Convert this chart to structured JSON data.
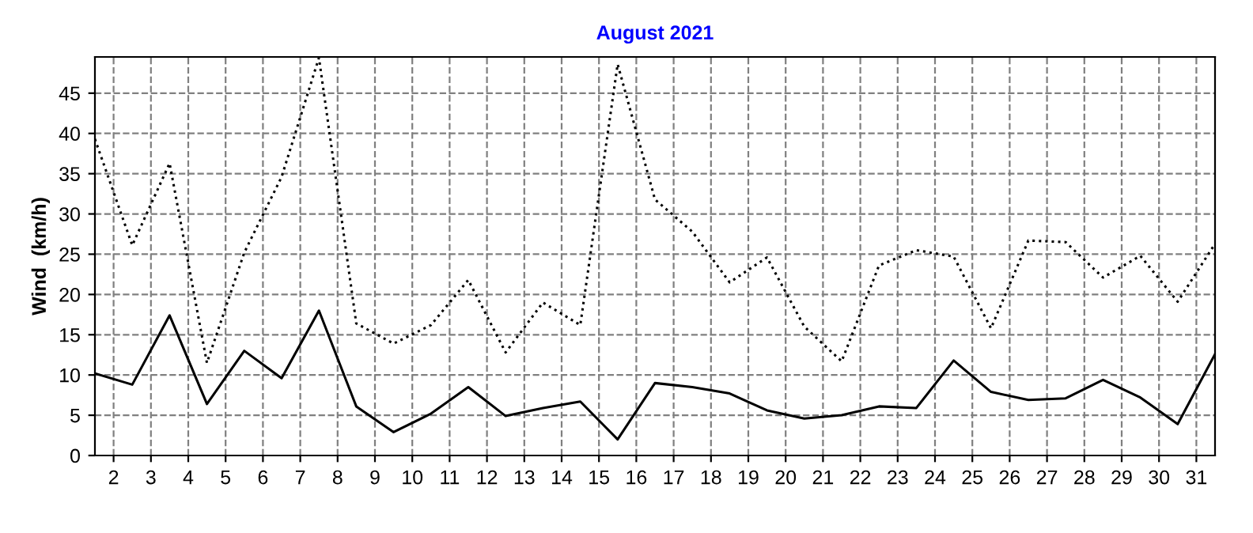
{
  "chart_data": {
    "type": "line",
    "title": "August 2021",
    "ylabel": "Wind  (km/h)",
    "x": [
      1.5,
      2.5,
      3.5,
      4.5,
      5.5,
      6.5,
      7.5,
      8.5,
      9.5,
      10.5,
      11.5,
      12.5,
      13.5,
      14.5,
      15.5,
      16.5,
      17.5,
      18.5,
      19.5,
      20.5,
      21.5,
      22.5,
      23.5,
      24.5,
      25.5,
      26.5,
      27.5,
      28.5,
      29.5,
      30.5,
      31.5
    ],
    "series": [
      {
        "color": "#000000",
        "line_style": "dotted",
        "values": [
          39.3,
          26.1,
          36.3,
          11.5,
          25.2,
          34.6,
          49.4,
          16.4,
          13.9,
          16.2,
          21.8,
          12.8,
          19.0,
          16.2,
          48.6,
          31.8,
          27.8,
          21.5,
          24.6,
          16.0,
          11.7,
          23.6,
          25.5,
          24.7,
          15.8,
          26.7,
          26.5,
          22.1,
          24.8,
          19.1,
          26.3
        ]
      },
      {
        "color": "#000000",
        "line_style": "solid",
        "values": [
          10.2,
          8.8,
          17.4,
          6.4,
          13.0,
          9.6,
          18.0,
          6.1,
          2.9,
          5.2,
          8.5,
          4.9,
          5.9,
          6.7,
          2.0,
          9.0,
          8.5,
          7.7,
          5.6,
          4.6,
          5.0,
          6.1,
          5.9,
          11.8,
          7.9,
          6.9,
          7.1,
          9.4,
          7.2,
          3.9,
          12.6
        ]
      }
    ],
    "xlim": [
      1.5,
      31.5
    ],
    "xticks": [
      2,
      3,
      4,
      5,
      6,
      7,
      8,
      9,
      10,
      11,
      12,
      13,
      14,
      15,
      16,
      17,
      18,
      19,
      20,
      21,
      22,
      23,
      24,
      25,
      26,
      27,
      28,
      29,
      30,
      31
    ],
    "ylim": [
      0,
      49.5
    ],
    "yticks": [
      0,
      5,
      10,
      15,
      20,
      25,
      30,
      35,
      40,
      45
    ],
    "grid": true,
    "legend": false,
    "marker": "none"
  }
}
